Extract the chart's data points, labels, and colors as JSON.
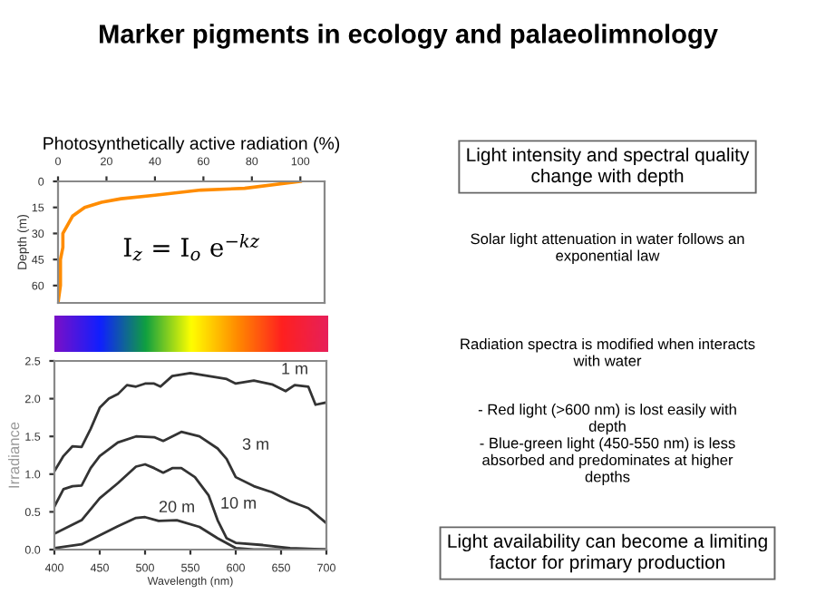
{
  "chart_data": [
    {
      "type": "line",
      "xlabel": "Photosynthetically active radiation (%)",
      "ylabel": "Depth (m)",
      "xlim": [
        0,
        110
      ],
      "xticks": [
        0,
        20,
        40,
        60,
        80,
        100
      ],
      "ylim": [
        70,
        0
      ],
      "yticks": [
        0,
        15,
        30,
        45,
        60
      ],
      "grid": false,
      "legend": false,
      "series": [
        {
          "color": "#ff8c00",
          "x": [
            100,
            77,
            59,
            40,
            26,
            18,
            11,
            6,
            4,
            2,
            2,
            1,
            1,
            0
          ],
          "values": [
            0,
            4,
            5,
            8,
            10,
            12,
            15,
            20,
            25,
            30,
            38,
            45,
            60,
            70
          ]
        }
      ],
      "annotations": [
        "I$_{z}$ = I$_{o}$ e$^{−kz}$"
      ]
    },
    {
      "type": "line",
      "xlabel": "Wavelength (nm)",
      "ylabel": "Irradiance",
      "xlim": [
        400,
        700
      ],
      "xticks": [
        400,
        450,
        500,
        550,
        600,
        650,
        700
      ],
      "ylim": [
        0,
        2.5
      ],
      "yticks": [
        {
          "value": 0,
          "label": "0.0"
        },
        0.5,
        {
          "value": 1,
          "label": "1.0"
        },
        1.5,
        {
          "value": 2,
          "label": "2.0"
        },
        2.5
      ],
      "grid": false,
      "legend": false,
      "series": [
        {
          "name": "1 m",
          "color": "#333333",
          "x": [
            400,
            410,
            420,
            430,
            440,
            450,
            460,
            470,
            480,
            490,
            500,
            510,
            517,
            530,
            550,
            570,
            590,
            600,
            620,
            640,
            655,
            665,
            680,
            688,
            700
          ],
          "values": [
            1.04,
            1.24,
            1.37,
            1.36,
            1.6,
            1.88,
            2.0,
            2.06,
            2.18,
            2.16,
            2.2,
            2.2,
            2.16,
            2.3,
            2.34,
            2.3,
            2.26,
            2.2,
            2.24,
            2.19,
            2.1,
            2.18,
            2.16,
            1.92,
            1.95
          ]
        },
        {
          "name": "3 m",
          "color": "#333333",
          "x": [
            400,
            410,
            420,
            430,
            440,
            450,
            470,
            490,
            510,
            520,
            540,
            560,
            580,
            590,
            600,
            620,
            640,
            660,
            680,
            700
          ],
          "values": [
            0.57,
            0.8,
            0.84,
            0.85,
            1.08,
            1.24,
            1.42,
            1.5,
            1.49,
            1.44,
            1.56,
            1.5,
            1.34,
            1.2,
            0.96,
            0.84,
            0.76,
            0.64,
            0.55,
            0.35
          ]
        },
        {
          "name": "10 m",
          "color": "#333333",
          "x": [
            400,
            420,
            430,
            450,
            470,
            490,
            500,
            510,
            520,
            530,
            540,
            555,
            570,
            580,
            590,
            600,
            630,
            660,
            700
          ],
          "values": [
            0.21,
            0.33,
            0.39,
            0.68,
            0.88,
            1.1,
            1.13,
            1.08,
            1.02,
            1.08,
            1.08,
            0.96,
            0.72,
            0.39,
            0.15,
            0.09,
            0.06,
            0.02,
            0
          ]
        },
        {
          "name": "20 m",
          "color": "#333333",
          "x": [
            400,
            430,
            450,
            470,
            490,
            500,
            515,
            535,
            560,
            580,
            600,
            620,
            700
          ],
          "values": [
            0.02,
            0.07,
            0.19,
            0.31,
            0.42,
            0.43,
            0.38,
            0.39,
            0.3,
            0.15,
            0.02,
            0,
            0
          ]
        }
      ]
    },
    {
      "type": "other",
      "title": "Marker pigments in ecology and palaeolimnology",
      "annotations": [
        "Light intensity and spectral quality\nchange with depth",
        "Solar light attenuation in water follows an\nexponential law",
        "Radiation spectra is modified when interacts\nwith water",
        "- Red light (>600 nm) is lost easily with\ndepth\n- Blue-green light (450-550 nm) is less\nabsorbed and predominates at higher\ndepths",
        "Light availability can become a limiting\nfactor for primary production"
      ]
    }
  ]
}
